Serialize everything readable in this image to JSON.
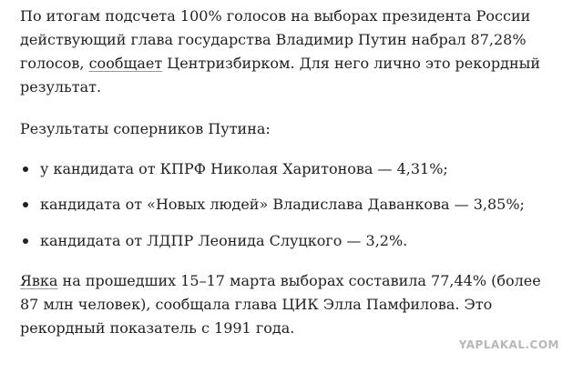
{
  "paragraphs": [
    {
      "lines": [
        "По итогам подсчета 100% голосов на выборах президента России",
        "действующий глава государства Владимир Путин набрал 87,28%",
        {
          "parts": [
            "голосов, ",
            "сообщает",
            " Центризбирком. Для него лично это рекордный"
          ]
        },
        "результат."
      ]
    },
    {
      "lines": [
        "Результаты соперников Путина:"
      ]
    }
  ],
  "list": [
    "у кандидата от КПРФ Николая Харитонова — 4,31%;",
    "кандидата от «Новых людей» Владислава Даванкова — 3,85%;",
    "кандидата от ЛДПР Леонида Слуцкого — 3,2%."
  ],
  "closing": {
    "lines": [
      {
        "parts": [
          "Явка",
          " на прошедших 15–17 марта выборах составила 77,44% (более"
        ]
      },
      "87 млн человек), сообщала глава ЦИК Элла Памфилова. Это",
      "рекордный показатель с 1991 года."
    ]
  },
  "watermark": "YAPLAKAL.COM"
}
